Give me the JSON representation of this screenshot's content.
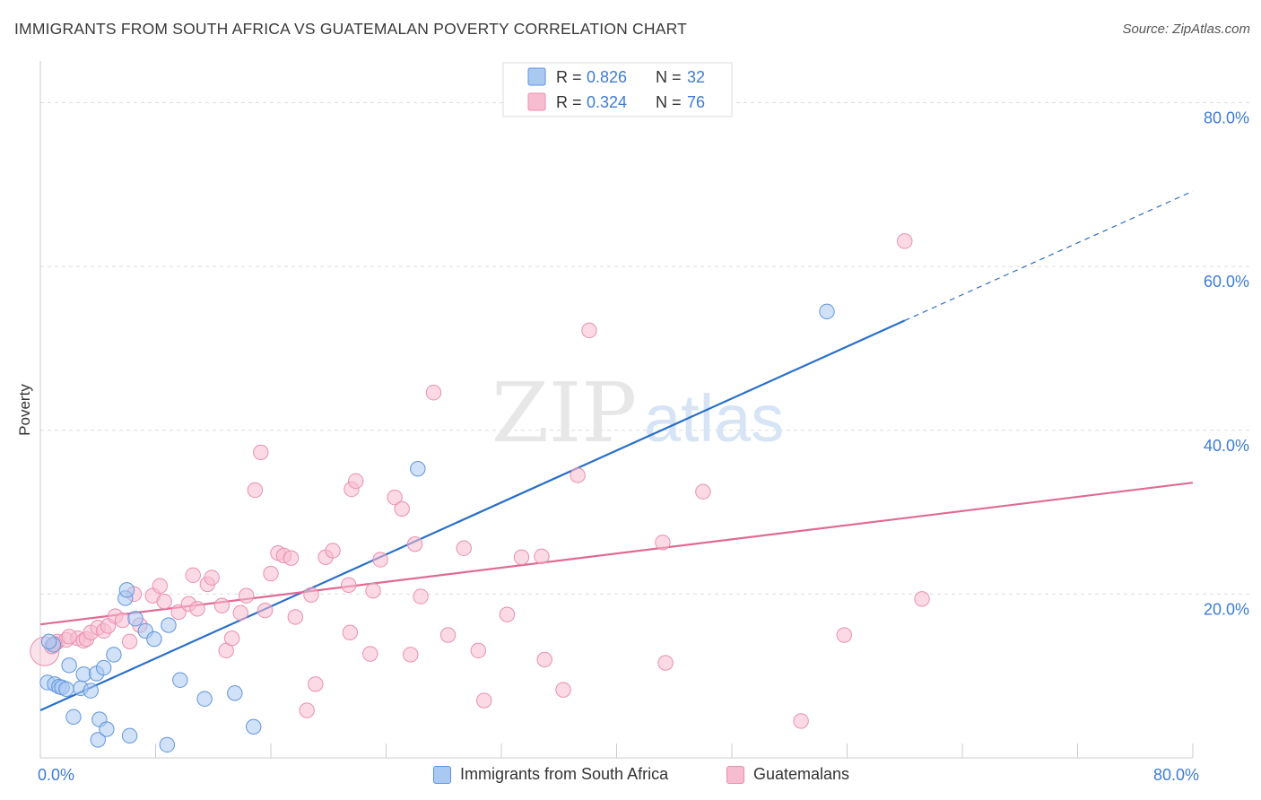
{
  "header": {
    "title": "IMMIGRANTS FROM SOUTH AFRICA VS GUATEMALAN POVERTY CORRELATION CHART",
    "source": "Source: ZipAtlas.com"
  },
  "watermark": {
    "zip": "ZIP",
    "atlas": "atlas"
  },
  "colors": {
    "blue_fill": "#a9c8f2",
    "blue_stroke": "#5f95dc",
    "blue_line": "#2a6fc9",
    "pink_fill": "#f7bcd0",
    "pink_stroke": "#ea8fae",
    "pink_line": "#e06a95",
    "tick_text": "#3d7bd6"
  },
  "legend_top": [
    {
      "r_label": "R = ",
      "r_value": "0.826",
      "n_label": "N = ",
      "n_value": "32"
    },
    {
      "r_label": "R = ",
      "r_value": "0.324",
      "n_label": "N = ",
      "n_value": "76"
    }
  ],
  "legend_bottom": [
    "Immigrants from South Africa",
    "Guatemalans"
  ],
  "chart_data": {
    "type": "scatter",
    "xlim": [
      0,
      80
    ],
    "ylim": [
      0,
      84
    ],
    "ylabel": "Poverty",
    "xlabel": "",
    "x_tick_labels": [
      {
        "value": 0,
        "label": "0.0%"
      },
      {
        "value": 80,
        "label": "80.0%"
      }
    ],
    "y_tick_labels": [
      {
        "value": 20,
        "label": "20.0%"
      },
      {
        "value": 40,
        "label": "40.0%"
      },
      {
        "value": 60,
        "label": "60.0%"
      },
      {
        "value": 80,
        "label": "80.0%"
      }
    ],
    "grid": true,
    "series": [
      {
        "name": "Immigrants from South Africa",
        "color": "blue",
        "points": [
          [
            0.5,
            9.2
          ],
          [
            1.0,
            9.0
          ],
          [
            1.3,
            8.7
          ],
          [
            1.5,
            8.6
          ],
          [
            2.0,
            11.3
          ],
          [
            2.3,
            5.0
          ],
          [
            2.8,
            8.5
          ],
          [
            3.0,
            10.2
          ],
          [
            3.5,
            8.2
          ],
          [
            3.9,
            10.3
          ],
          [
            4.0,
            2.2
          ],
          [
            4.1,
            4.7
          ],
          [
            4.4,
            11.0
          ],
          [
            4.6,
            3.5
          ],
          [
            5.1,
            12.6
          ],
          [
            5.9,
            19.5
          ],
          [
            6.0,
            20.5
          ],
          [
            6.2,
            2.7
          ],
          [
            6.6,
            17.0
          ],
          [
            7.3,
            15.5
          ],
          [
            7.9,
            14.5
          ],
          [
            8.9,
            16.2
          ],
          [
            8.8,
            1.6
          ],
          [
            9.7,
            9.5
          ],
          [
            11.4,
            7.2
          ],
          [
            13.5,
            7.9
          ],
          [
            14.8,
            3.8
          ],
          [
            26.2,
            35.3
          ],
          [
            54.6,
            54.5
          ],
          [
            0.9,
            13.8
          ],
          [
            0.6,
            14.2
          ],
          [
            1.8,
            8.4
          ]
        ],
        "trend": {
          "x0": 0,
          "y0": 5.8,
          "x1": 60,
          "y1": 53.4,
          "dash_x1": 80,
          "dash_y1": 69.2
        }
      },
      {
        "name": "Guatemalans",
        "color": "pink",
        "points": [
          [
            0.3,
            13.0
          ],
          [
            0.8,
            13.6
          ],
          [
            1.2,
            14.2
          ],
          [
            1.8,
            14.4
          ],
          [
            2.6,
            14.6
          ],
          [
            3.0,
            14.3
          ],
          [
            3.2,
            14.5
          ],
          [
            3.5,
            15.3
          ],
          [
            4.0,
            15.9
          ],
          [
            4.4,
            15.5
          ],
          [
            4.7,
            16.1
          ],
          [
            5.2,
            17.3
          ],
          [
            5.7,
            16.8
          ],
          [
            6.2,
            14.2
          ],
          [
            6.5,
            20.0
          ],
          [
            6.9,
            16.2
          ],
          [
            7.8,
            19.8
          ],
          [
            8.3,
            21.0
          ],
          [
            8.6,
            19.1
          ],
          [
            9.6,
            17.8
          ],
          [
            10.3,
            18.8
          ],
          [
            10.6,
            22.3
          ],
          [
            10.9,
            18.2
          ],
          [
            11.6,
            21.2
          ],
          [
            11.9,
            22.0
          ],
          [
            12.6,
            18.6
          ],
          [
            12.9,
            13.1
          ],
          [
            13.3,
            14.6
          ],
          [
            13.9,
            17.7
          ],
          [
            14.3,
            19.8
          ],
          [
            14.9,
            32.7
          ],
          [
            15.3,
            37.3
          ],
          [
            15.6,
            18.0
          ],
          [
            16.0,
            22.5
          ],
          [
            16.5,
            25.0
          ],
          [
            16.9,
            24.7
          ],
          [
            17.4,
            24.4
          ],
          [
            17.7,
            17.2
          ],
          [
            18.5,
            5.8
          ],
          [
            18.8,
            19.9
          ],
          [
            19.1,
            9.0
          ],
          [
            19.8,
            24.5
          ],
          [
            20.3,
            25.3
          ],
          [
            21.5,
            15.3
          ],
          [
            21.6,
            32.8
          ],
          [
            21.9,
            33.8
          ],
          [
            21.4,
            21.1
          ],
          [
            22.9,
            12.7
          ],
          [
            23.1,
            20.4
          ],
          [
            23.6,
            24.2
          ],
          [
            24.6,
            31.8
          ],
          [
            25.1,
            30.4
          ],
          [
            25.7,
            12.6
          ],
          [
            26.0,
            26.1
          ],
          [
            26.4,
            19.7
          ],
          [
            27.3,
            44.6
          ],
          [
            28.3,
            15.0
          ],
          [
            29.4,
            25.6
          ],
          [
            30.4,
            13.1
          ],
          [
            30.8,
            7.0
          ],
          [
            32.4,
            17.5
          ],
          [
            33.4,
            24.5
          ],
          [
            34.8,
            24.6
          ],
          [
            35.0,
            12.0
          ],
          [
            36.3,
            8.3
          ],
          [
            37.3,
            34.5
          ],
          [
            38.1,
            52.2
          ],
          [
            43.2,
            26.3
          ],
          [
            43.4,
            11.6
          ],
          [
            46.0,
            32.5
          ],
          [
            52.8,
            4.5
          ],
          [
            55.8,
            15.0
          ],
          [
            60.0,
            63.1
          ],
          [
            61.2,
            19.4
          ],
          [
            2.0,
            14.8
          ],
          [
            1.0,
            13.9
          ]
        ],
        "trend": {
          "x0": 0,
          "y0": 16.3,
          "x1": 80,
          "y1": 33.6
        }
      }
    ]
  }
}
